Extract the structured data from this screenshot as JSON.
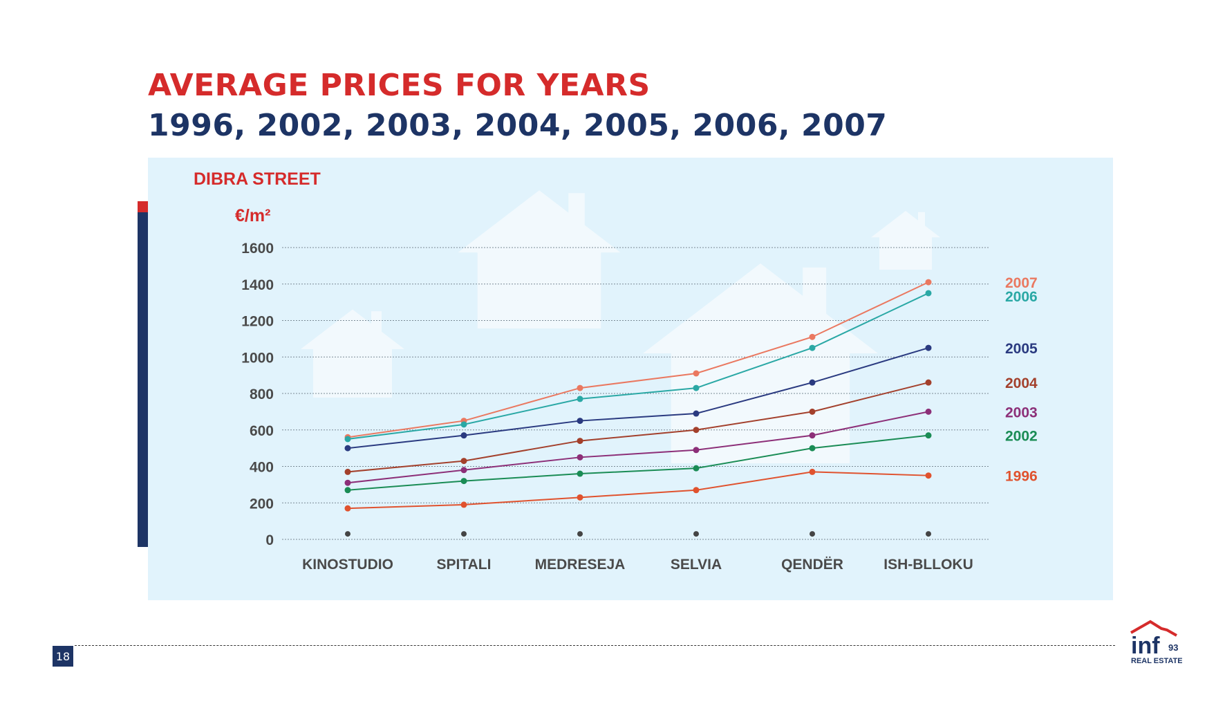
{
  "page": {
    "title_line1": "AVERAGE PRICES FOR YEARS",
    "title_line2": "1996, 2002, 2003, 2004, 2005, 2006, 2007",
    "page_number": "18",
    "logo": {
      "text": "inf",
      "number": "93",
      "tagline": "REAL ESTATE",
      "icon": "house-roof-logo-icon"
    }
  },
  "chart_data": {
    "type": "line",
    "title": "DIBRA STREET",
    "ylabel": "€/m²",
    "ylim": [
      0,
      1600
    ],
    "yticks": [
      0,
      200,
      400,
      600,
      800,
      1000,
      1200,
      1400,
      1600
    ],
    "categories": [
      "KINOSTUDIO",
      "SPITALI",
      "MEDRESEJA",
      "SELVIA",
      "QENDËR",
      "ISH-BLLOKU"
    ],
    "baseline_marker_value": 30,
    "grid": true,
    "legend": "labels at right end of each line",
    "series": [
      {
        "name": "2007",
        "color": "#ea7860",
        "values": [
          560,
          650,
          830,
          910,
          1110,
          1410
        ]
      },
      {
        "name": "2006",
        "color": "#2aa8a5",
        "values": [
          550,
          630,
          770,
          830,
          1050,
          1350
        ]
      },
      {
        "name": "2005",
        "color": "#2a3a80",
        "values": [
          500,
          570,
          650,
          690,
          860,
          1050
        ]
      },
      {
        "name": "2004",
        "color": "#a3402c",
        "values": [
          370,
          430,
          540,
          600,
          700,
          860
        ]
      },
      {
        "name": "2003",
        "color": "#8c2f78",
        "values": [
          310,
          380,
          450,
          490,
          570,
          700
        ]
      },
      {
        "name": "2002",
        "color": "#1a8c55",
        "values": [
          270,
          320,
          360,
          390,
          500,
          570
        ]
      },
      {
        "name": "1996",
        "color": "#e0522e",
        "values": [
          170,
          190,
          230,
          270,
          370,
          350
        ]
      }
    ],
    "colors": {
      "title": "#d52b2b",
      "axis_text": "#4a4a4a",
      "grid": "#7a8a95",
      "baseline_dot": "#444444"
    }
  }
}
